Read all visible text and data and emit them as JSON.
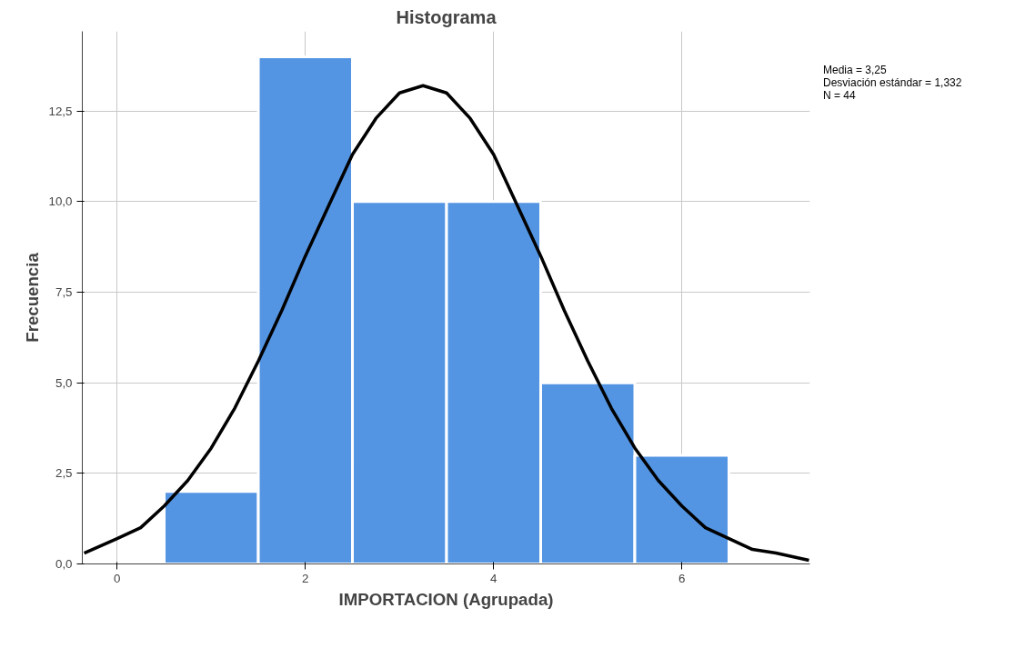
{
  "chart_data": {
    "type": "histogram",
    "title": "Histograma",
    "xlabel": "IMPORTACION (Agrupada)",
    "ylabel": "Frecuencia",
    "bins": [
      0.5,
      1.5,
      2.5,
      3.5,
      4.5,
      5.5,
      6.5
    ],
    "values": [
      2,
      14,
      10,
      10,
      5,
      3
    ],
    "color": "#5495e3",
    "series": [
      {
        "type": "line",
        "color": "#000000",
        "x": [
          -0.35,
          0,
          0.25,
          0.5,
          0.75,
          1,
          1.25,
          1.5,
          1.75,
          2,
          2.25,
          2.5,
          2.75,
          3,
          3.25,
          3.5,
          3.75,
          4,
          4.25,
          4.5,
          4.75,
          5,
          5.25,
          5.5,
          5.75,
          6,
          6.25,
          6.5,
          6.75,
          7,
          7.35
        ],
        "values": [
          0.3,
          0.7,
          1.0,
          1.6,
          2.3,
          3.2,
          4.3,
          5.6,
          7.0,
          8.5,
          9.9,
          11.3,
          12.3,
          13.0,
          13.2,
          13.0,
          12.3,
          11.3,
          9.9,
          8.5,
          7.0,
          5.6,
          4.3,
          3.2,
          2.3,
          1.6,
          1.0,
          0.7,
          0.4,
          0.3,
          0.1
        ]
      }
    ],
    "xlim": [
      -0.37,
      7.36
    ],
    "ylim": [
      0,
      14.7
    ],
    "xticks": [
      0,
      2,
      4,
      6
    ],
    "yticks": [
      {
        "value": 0,
        "label": "0,0"
      },
      {
        "value": 2.5,
        "label": "2,5"
      },
      {
        "value": 5,
        "label": "5,0"
      },
      {
        "value": 7.5,
        "label": "7,5"
      },
      {
        "value": 10,
        "label": "10,0"
      },
      {
        "value": 12.5,
        "label": "12,5"
      }
    ],
    "grid": true,
    "marker": "none",
    "line_style": "solid",
    "annotations": [
      "Media = 3,25",
      "Desviación estándar = 1,332",
      "N = 44"
    ]
  }
}
